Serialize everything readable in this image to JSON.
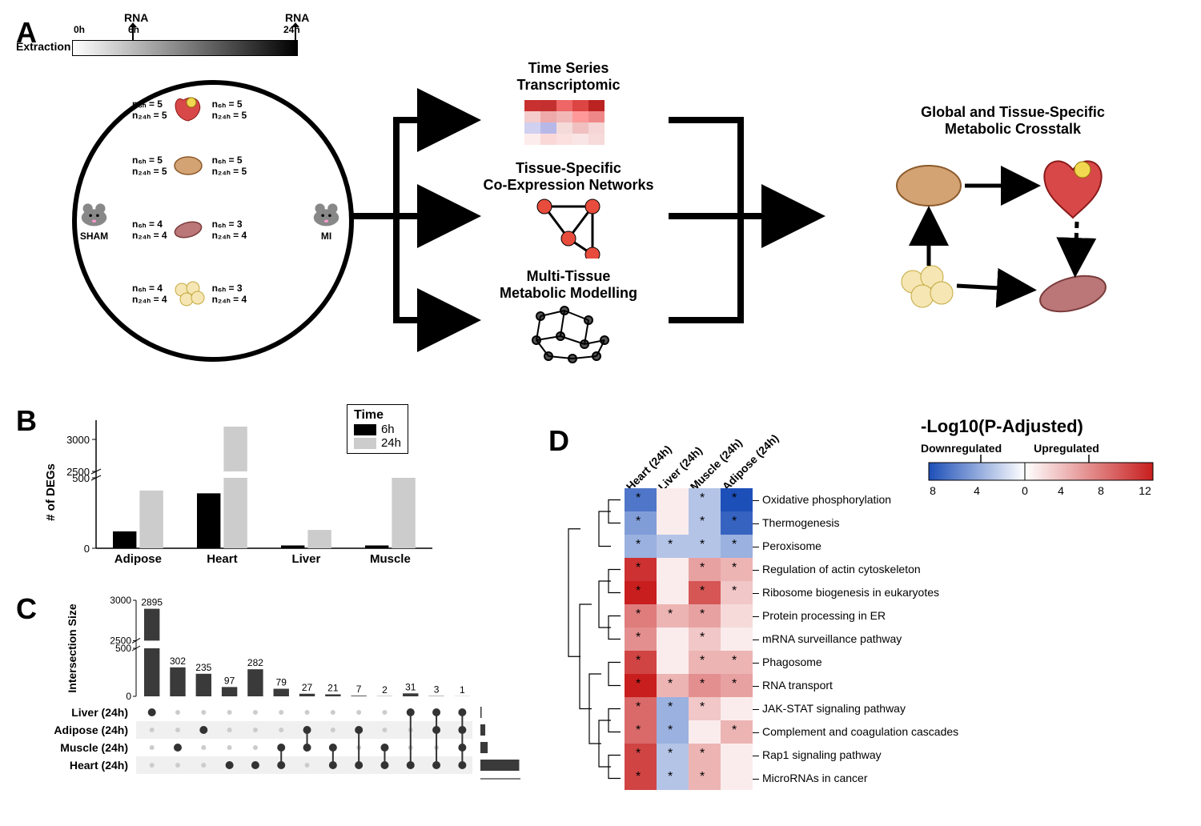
{
  "panelLabels": {
    "A": "A",
    "B": "B",
    "C": "C",
    "D": "D"
  },
  "panelA": {
    "extractionLabel": "Extraction",
    "timeLabels": {
      "t0": "0h",
      "t6": "6h",
      "t24": "24h",
      "rna": "RNA"
    },
    "mouseLeft": "SHAM",
    "mouseRight": "MI",
    "sampleN": [
      {
        "n6": "n₆ₕ = 5",
        "n24": "n₂₄ₕ = 5",
        "n6b": "n₆ₕ = 5",
        "n24b": "n₂₄ₕ = 5"
      },
      {
        "n6": "n₆ₕ = 5",
        "n24": "n₂₄ₕ = 5",
        "n6b": "n₆ₕ = 5",
        "n24b": "n₂₄ₕ = 5"
      },
      {
        "n6": "n₆ₕ = 4",
        "n24": "n₂₄ₕ = 4",
        "n6b": "n₆ₕ = 3",
        "n24b": "n₂₄ₕ = 4"
      },
      {
        "n6": "n₆ₕ = 4",
        "n24": "n₂₄ₕ = 4",
        "n6b": "n₆ₕ = 3",
        "n24b": "n₂₄ₕ = 4"
      }
    ],
    "analyses": {
      "ts": "Time Series\nTranscriptomic",
      "coexp": "Tissue-Specific\nCo-Expression Networks",
      "gem": "Multi-Tissue\nMetabolic Modelling",
      "crosstalk": "Global and Tissue-Specific\nMetabolic Crosstalk"
    },
    "heatmapColors": [
      [
        "#c93030",
        "#c43030",
        "#e66",
        "#d44",
        "#b22"
      ],
      [
        "#f4cccc",
        "#eaa",
        "#f2b7b7",
        "#f99",
        "#e88"
      ],
      [
        "#d0d0f0",
        "#b8b8e8",
        "#f5dada",
        "#f0c0c0",
        "#f5d5d5"
      ],
      [
        "#fdecec",
        "#fbd8d8",
        "#fbe0e0",
        "#f9e5e5",
        "#f7dada"
      ]
    ],
    "networkNodes": [
      [
        0,
        0
      ],
      [
        60,
        0
      ],
      [
        30,
        40
      ],
      [
        60,
        60
      ]
    ],
    "networkColor": "#e74c3c"
  },
  "panelB": {
    "type": "bar",
    "ylabel": "# of DEGs",
    "categories": [
      "Adipose",
      "Heart",
      "Liver",
      "Muscle"
    ],
    "series": [
      {
        "name": "6h",
        "color": "#000000",
        "values": [
          120,
          390,
          20,
          20
        ]
      },
      {
        "name": "24h",
        "color": "#cccccc",
        "values": [
          410,
          3200,
          130,
          630
        ]
      }
    ],
    "yticks_lower": [
      0,
      500
    ],
    "yticks_upper": [
      2500,
      3000
    ],
    "break_from": 500,
    "break_to": 2500,
    "legend_title": "Time",
    "label_fontsize": 15
  },
  "panelC": {
    "ylabel": "Intersection Size",
    "bars": [
      2895,
      302,
      235,
      97,
      282,
      79,
      27,
      21,
      7,
      2,
      31,
      3,
      1
    ],
    "bar_color": "#3a3a3a",
    "yticks_lower": [
      0,
      500
    ],
    "yticks_upper": [
      2500,
      3000
    ],
    "rows": [
      "Liver (24h)",
      "Adipose (24h)",
      "Muscle (24h)",
      "Heart (24h)"
    ],
    "matrix": [
      [
        1,
        0,
        0,
        0,
        0,
        0,
        0,
        0,
        0,
        0,
        1,
        1,
        1
      ],
      [
        0,
        0,
        1,
        0,
        0,
        0,
        1,
        0,
        1,
        0,
        0,
        1,
        1
      ],
      [
        0,
        1,
        0,
        0,
        0,
        1,
        1,
        1,
        0,
        1,
        0,
        0,
        1
      ],
      [
        0,
        0,
        0,
        1,
        1,
        1,
        0,
        1,
        1,
        1,
        1,
        1,
        1
      ]
    ],
    "row_totals": [
      100,
      400,
      600,
      3200
    ]
  },
  "panelD": {
    "columns": [
      "Heart (24h)",
      "Liver (24h)",
      "Muscle (24h)",
      "Adipose (24h)"
    ],
    "rows": [
      "Oxidative phosphorylation",
      "Thermogenesis",
      "Peroxisome",
      "Regulation of actin cytoskeleton",
      "Ribosome biogenesis in eukaryotes",
      "Protein processing in ER",
      "mRNA surveillance pathway",
      "Phagosome",
      "RNA transport",
      "JAK-STAT signaling pathway",
      "Complement and coagulation cascades",
      "Rap1 signaling pathway",
      "MicroRNAs in cancer"
    ],
    "values": [
      [
        -7,
        1,
        -3,
        -9
      ],
      [
        -5,
        1,
        -3,
        -8
      ],
      [
        -4,
        -3,
        -3,
        -4
      ],
      [
        11,
        1,
        5,
        4
      ],
      [
        12,
        1,
        9,
        3
      ],
      [
        7,
        4,
        5,
        2
      ],
      [
        6,
        1,
        3,
        1
      ],
      [
        10,
        1,
        4,
        4
      ],
      [
        12,
        4,
        6,
        5
      ],
      [
        8,
        -4,
        3,
        1
      ],
      [
        8,
        -4,
        1,
        4
      ],
      [
        10,
        -3,
        4,
        1
      ],
      [
        10,
        -3,
        4,
        1
      ]
    ],
    "stars": [
      [
        1,
        0,
        1,
        1
      ],
      [
        1,
        0,
        1,
        1
      ],
      [
        1,
        1,
        1,
        1
      ],
      [
        1,
        0,
        1,
        1
      ],
      [
        1,
        0,
        1,
        1
      ],
      [
        1,
        1,
        1,
        0
      ],
      [
        1,
        0,
        1,
        0
      ],
      [
        1,
        0,
        1,
        1
      ],
      [
        1,
        1,
        1,
        1
      ],
      [
        1,
        1,
        1,
        0
      ],
      [
        1,
        1,
        0,
        1
      ],
      [
        1,
        1,
        1,
        0
      ],
      [
        1,
        1,
        1,
        0
      ]
    ],
    "gradient": {
      "title": "-Log10(P-Adjusted)",
      "down": "Downregulated",
      "up": "Upregulated",
      "ticks_down": [
        8,
        4,
        0
      ],
      "ticks_up": [
        4,
        8,
        12
      ],
      "color_down": "#1d4fb8",
      "color_up": "#c81e1e",
      "color_mid": "#ffffff"
    }
  }
}
